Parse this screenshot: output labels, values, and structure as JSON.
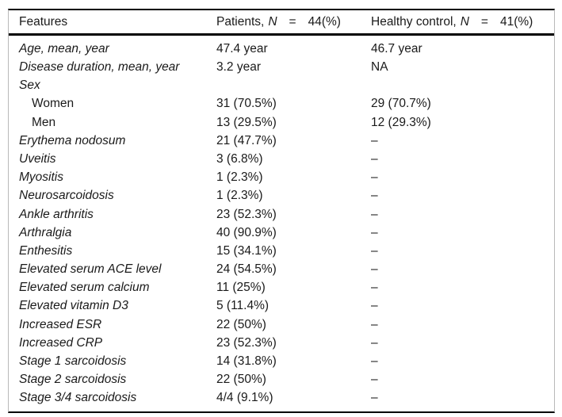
{
  "colors": {
    "background": "#ffffff",
    "text": "#1a1a1a",
    "rule_black": "#000000",
    "rule_light_gray": "#b9b9b9"
  },
  "table": {
    "header": {
      "features": "Features",
      "patients": {
        "pre": "Patients,",
        "n": "N",
        "eq": "=",
        "value": "44(%)"
      },
      "control": {
        "pre": "Healthy control,",
        "n": "N",
        "eq": "=",
        "value": "41(%)"
      }
    },
    "rows": [
      {
        "label": "Age, mean, year",
        "italic": true,
        "indent": false,
        "patients": "47.4 year",
        "control": "46.7 year"
      },
      {
        "label": "Disease duration, mean, year",
        "italic": true,
        "indent": false,
        "patients": "3.2 year",
        "control": "NA"
      },
      {
        "label": "Sex",
        "italic": true,
        "indent": false,
        "patients": "",
        "control": ""
      },
      {
        "label": "Women",
        "italic": false,
        "indent": true,
        "patients": "31 (70.5%)",
        "control": "29 (70.7%)"
      },
      {
        "label": "Men",
        "italic": false,
        "indent": true,
        "patients": "13 (29.5%)",
        "control": "12 (29.3%)"
      },
      {
        "label": "Erythema nodosum",
        "italic": true,
        "indent": false,
        "patients": "21 (47.7%)",
        "control": "–"
      },
      {
        "label": "Uveitis",
        "italic": true,
        "indent": false,
        "patients": "3 (6.8%)",
        "control": "–"
      },
      {
        "label": "Myositis",
        "italic": true,
        "indent": false,
        "patients": "1 (2.3%)",
        "control": "–"
      },
      {
        "label": "Neurosarcoidosis",
        "italic": true,
        "indent": false,
        "patients": "1 (2.3%)",
        "control": "–"
      },
      {
        "label": "Ankle arthritis",
        "italic": true,
        "indent": false,
        "patients": "23 (52.3%)",
        "control": "–"
      },
      {
        "label": "Arthralgia",
        "italic": true,
        "indent": false,
        "patients": "40 (90.9%)",
        "control": "–"
      },
      {
        "label": "Enthesitis",
        "italic": true,
        "indent": false,
        "patients": "15 (34.1%)",
        "control": "–"
      },
      {
        "label": "Elevated serum ACE level",
        "italic": true,
        "indent": false,
        "patients": "24 (54.5%)",
        "control": "–"
      },
      {
        "label": "Elevated serum calcium",
        "italic": true,
        "indent": false,
        "patients": "11 (25%)",
        "control": "–"
      },
      {
        "label": "Elevated vitamin D3",
        "italic": true,
        "indent": false,
        "patients": "5 (11.4%)",
        "control": "–"
      },
      {
        "label": "Increased ESR",
        "italic": true,
        "indent": false,
        "patients": "22 (50%)",
        "control": "–"
      },
      {
        "label": "Increased CRP",
        "italic": true,
        "indent": false,
        "patients": "23 (52.3%)",
        "control": "–"
      },
      {
        "label": "Stage 1 sarcoidosis",
        "italic": true,
        "indent": false,
        "patients": "14 (31.8%)",
        "control": "–"
      },
      {
        "label": "Stage 2 sarcoidosis",
        "italic": true,
        "indent": false,
        "patients": "22 (50%)",
        "control": "–"
      },
      {
        "label": "Stage 3/4 sarcoidosis",
        "italic": true,
        "indent": false,
        "patients": "4/4 (9.1%)",
        "control": "–"
      }
    ]
  }
}
